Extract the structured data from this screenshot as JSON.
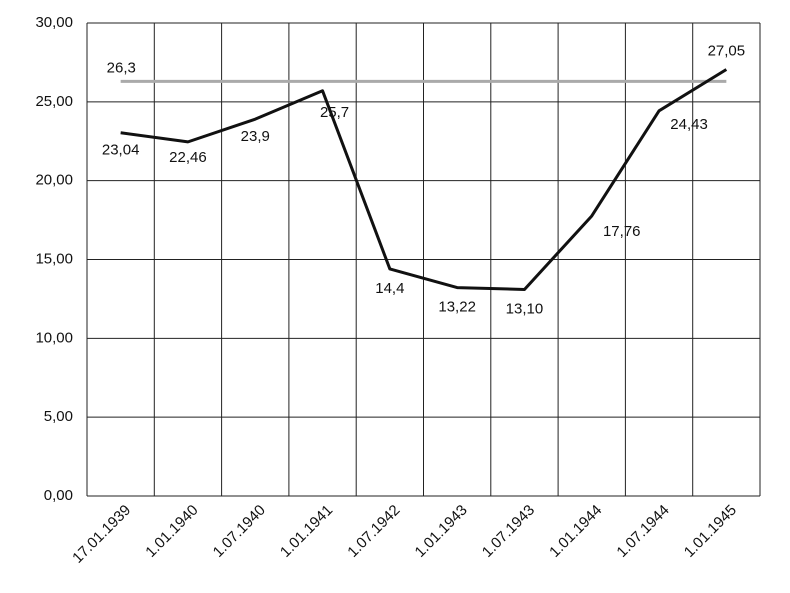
{
  "chart_data": {
    "type": "line",
    "categories": [
      "17.01.1939",
      "1.01.1940",
      "1.07.1940",
      "1.01.1941",
      "1.07.1942",
      "1.01.1943",
      "1.07.1943",
      "1.01.1944",
      "1.07.1944",
      "1.01.1945"
    ],
    "values": [
      23.04,
      22.46,
      23.9,
      25.7,
      14.4,
      13.22,
      13.1,
      17.76,
      24.43,
      27.05
    ],
    "value_labels": [
      "23,04",
      "22,46",
      "23,9",
      "25,7",
      "14,4",
      "13,22",
      "13,10",
      "17,76",
      "24,43",
      "27,05"
    ],
    "color": "#111111",
    "reference": {
      "value": 26.3,
      "label": "26,3",
      "color": "#aaaaaa"
    },
    "ylim": [
      0,
      30
    ],
    "yticks": [
      {
        "value": 0,
        "label": "0,00"
      },
      {
        "value": 5,
        "label": "5,00"
      },
      {
        "value": 10,
        "label": "10,00"
      },
      {
        "value": 15,
        "label": "15,00"
      },
      {
        "value": 20,
        "label": "20,00"
      },
      {
        "value": 25,
        "label": "25,00"
      },
      {
        "value": 30,
        "label": "30,00"
      }
    ],
    "grid": true
  }
}
